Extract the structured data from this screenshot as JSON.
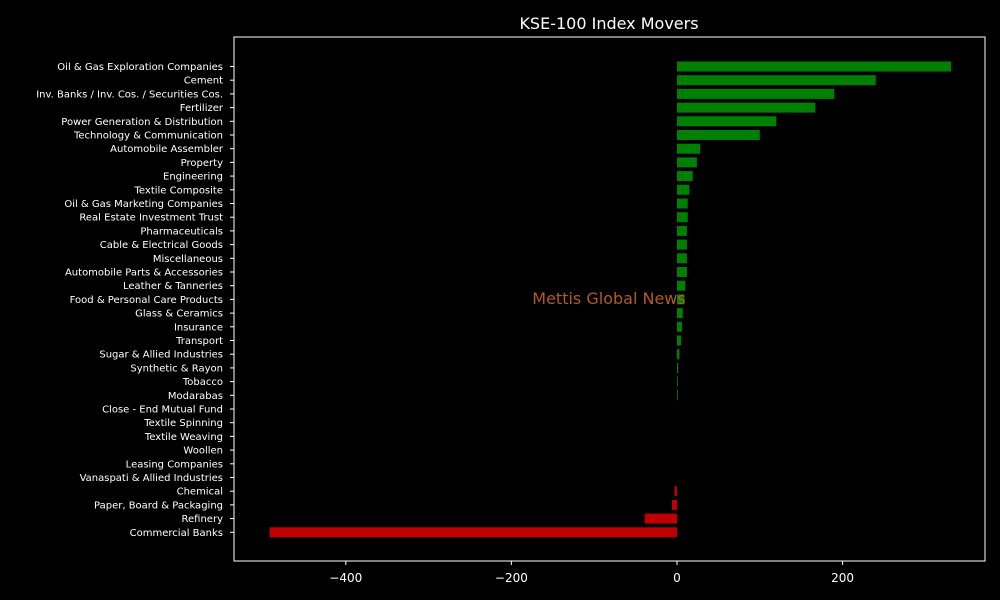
{
  "chart_data": {
    "type": "bar",
    "orientation": "horizontal",
    "title": "KSE-100 Index Movers",
    "watermark": "Mettis Global News",
    "xlim": [
      -535,
      372
    ],
    "xticks": [
      -400,
      -200,
      0,
      200
    ],
    "xtick_labels": [
      "−400",
      "−200",
      "0",
      "200"
    ],
    "grid": false,
    "colors": {
      "background": "#000000",
      "positive": "#008000",
      "negative": "#c00000",
      "axis": "#ffffff",
      "text": "#ffffff",
      "watermark": "#b35a1f"
    },
    "categories": [
      "Oil & Gas Exploration Companies",
      "Cement",
      "Inv. Banks / Inv. Cos. / Securities Cos.",
      "Fertilizer",
      "Power Generation & Distribution",
      "Technology & Communication",
      "Automobile Assembler",
      "Property",
      "Engineering",
      "Textile Composite",
      "Oil & Gas Marketing Companies",
      "Real Estate Investment Trust",
      "Pharmaceuticals",
      "Cable & Electrical Goods",
      "Miscellaneous",
      "Automobile Parts & Accessories",
      "Leather & Tanneries",
      "Food & Personal Care Products",
      "Glass & Ceramics",
      "Insurance",
      "Transport",
      "Sugar & Allied Industries",
      "Synthetic & Rayon",
      "Tobacco",
      "Modarabas",
      "Close - End Mutual Fund",
      "Textile Spinning",
      "Textile Weaving",
      "Woollen",
      "Leasing Companies",
      "Vanaspati & Allied Industries",
      "Chemical",
      "Paper, Board & Packaging",
      "Refinery",
      "Commercial Banks"
    ],
    "values": [
      331,
      240,
      190,
      167,
      120,
      100,
      28,
      24,
      19,
      15,
      13,
      13,
      12,
      12,
      12,
      12,
      10,
      9,
      7,
      6,
      5,
      3,
      1.5,
      1,
      1,
      0,
      0,
      0,
      0,
      0,
      0,
      -3,
      -6,
      -39,
      -492
    ]
  }
}
